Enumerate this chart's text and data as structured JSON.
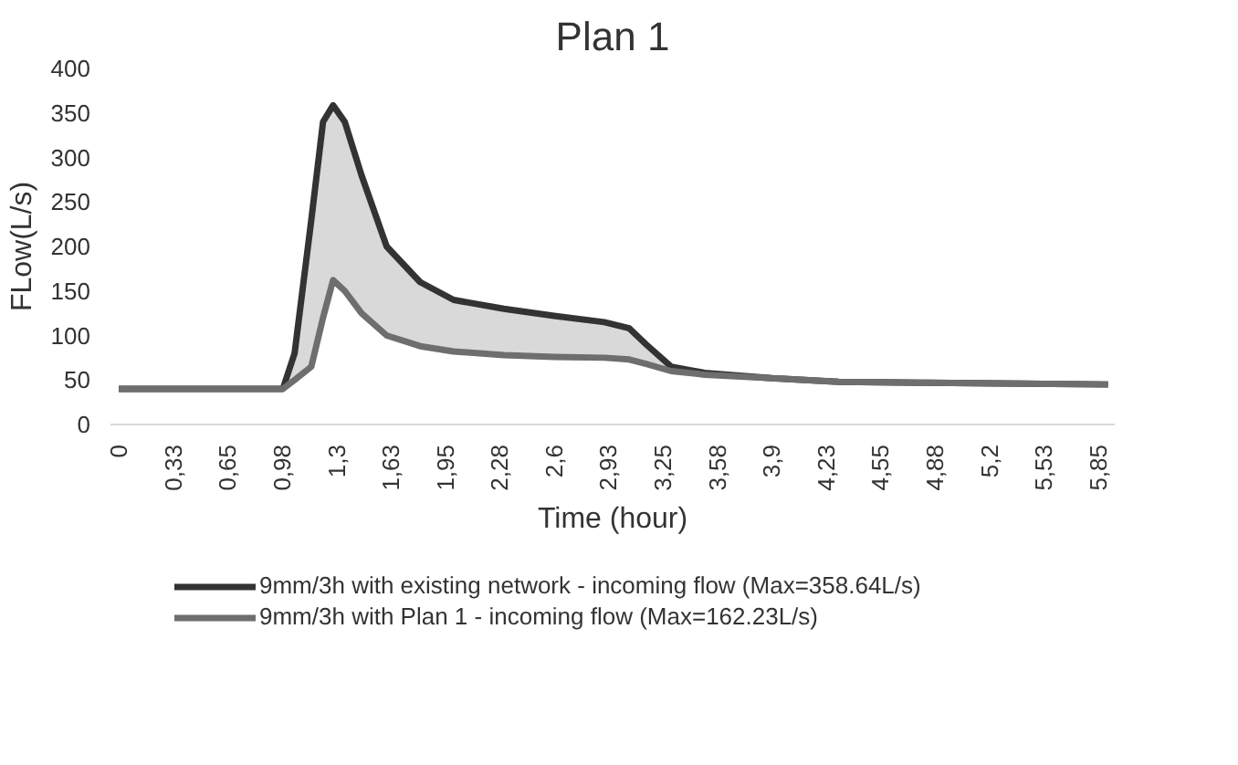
{
  "chart_data": {
    "type": "line",
    "title": "Plan 1",
    "xlabel": "Time (hour)",
    "ylabel": "FLow(L/s)",
    "x": [
      0,
      0.5,
      0.98,
      1.05,
      1.15,
      1.22,
      1.28,
      1.35,
      1.45,
      1.6,
      1.8,
      2.0,
      2.3,
      2.6,
      2.9,
      3.05,
      3.15,
      3.3,
      3.5,
      3.9,
      4.3,
      4.8,
      5.4,
      5.91
    ],
    "series": [
      {
        "name": "9mm/3h with existing network - incoming flow (Max=358.64L/s)",
        "color": "#333333",
        "values": [
          40,
          40,
          40,
          80,
          230,
          340,
          358.64,
          340,
          280,
          200,
          160,
          140,
          130,
          122,
          115,
          108,
          90,
          65,
          58,
          52,
          48,
          47,
          46,
          45
        ],
        "lower": [
          40,
          40,
          40,
          50,
          65,
          120,
          162.23,
          150,
          125,
          100,
          88,
          82,
          78,
          76,
          75,
          73,
          68,
          60,
          56,
          52,
          48,
          47,
          46,
          45
        ],
        "upper": [
          40,
          40,
          40,
          80,
          230,
          340,
          358.64,
          340,
          280,
          200,
          160,
          140,
          130,
          122,
          115,
          108,
          90,
          65,
          58,
          52,
          48,
          47,
          46,
          45
        ]
      },
      {
        "name": "9mm/3h with Plan 1 - incoming flow (Max=162.23L/s)",
        "color": "#6e6e6e",
        "values": [
          40,
          40,
          40,
          50,
          65,
          120,
          162.23,
          150,
          125,
          100,
          88,
          82,
          78,
          76,
          75,
          73,
          68,
          60,
          56,
          52,
          48,
          47,
          46,
          45
        ]
      }
    ],
    "xlim": [
      -0.05,
      5.95
    ],
    "ylim": [
      0,
      400
    ],
    "xticks": [
      0,
      {
        "value": 0.325,
        "label": "0,33"
      },
      {
        "value": 0.65,
        "label": "0,65"
      },
      {
        "value": 0.975,
        "label": "0,98"
      },
      {
        "value": 1.3,
        "label": "1,3"
      },
      {
        "value": 1.625,
        "label": "1,63"
      },
      {
        "value": 1.95,
        "label": "1,95"
      },
      {
        "value": 2.275,
        "label": "2,28"
      },
      {
        "value": 2.6,
        "label": "2,6"
      },
      {
        "value": 2.925,
        "label": "2,93"
      },
      {
        "value": 3.25,
        "label": "3,25"
      },
      {
        "value": 3.575,
        "label": "3,58"
      },
      {
        "value": 3.9,
        "label": "3,9"
      },
      {
        "value": 4.225,
        "label": "4,23"
      },
      {
        "value": 4.55,
        "label": "4,55"
      },
      {
        "value": 4.875,
        "label": "4,88"
      },
      {
        "value": 5.2,
        "label": "5,2"
      },
      {
        "value": 5.525,
        "label": "5,53"
      },
      {
        "value": 5.85,
        "label": "5,85"
      }
    ],
    "yticks": [
      0,
      50,
      100,
      150,
      200,
      250,
      300,
      350,
      400
    ],
    "grid": false,
    "legend": "bottom",
    "marker": "none",
    "line_style": "solid"
  }
}
